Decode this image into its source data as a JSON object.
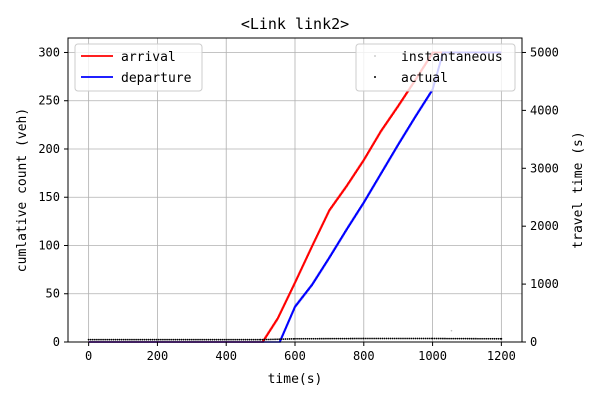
{
  "chart_data": {
    "type": "line",
    "title": "<Link link2>",
    "xlabel": "time(s)",
    "ylabel": "cumlative count (veh)",
    "y2label": "travel time (s)",
    "xlim": [
      -60,
      1260
    ],
    "ylim": [
      0,
      315
    ],
    "y2lim": [
      0,
      5250
    ],
    "x_ticks": [
      "0",
      "200",
      "400",
      "600",
      "800",
      "1000",
      "1200"
    ],
    "y_ticks": [
      "0",
      "50",
      "100",
      "150",
      "200",
      "250",
      "300"
    ],
    "y2_ticks": [
      "0",
      "1000",
      "2000",
      "3000",
      "4000",
      "5000"
    ],
    "grid": true,
    "legend_left": {
      "placement": "top-left"
    },
    "legend_right": {
      "placement": "top-right"
    },
    "series": [
      {
        "name": "arrival",
        "axis": "left",
        "style": "step",
        "color": "#ff0000",
        "points": [
          [
            0,
            0
          ],
          [
            505,
            0
          ],
          [
            550,
            25
          ],
          [
            600,
            62
          ],
          [
            650,
            100
          ],
          [
            700,
            137
          ],
          [
            750,
            162
          ],
          [
            800,
            189
          ],
          [
            850,
            219
          ],
          [
            900,
            245
          ],
          [
            950,
            272
          ],
          [
            1000,
            300
          ],
          [
            1200,
            300
          ]
        ]
      },
      {
        "name": "departure",
        "axis": "left",
        "style": "step",
        "color": "#0000ff",
        "points": [
          [
            0,
            0
          ],
          [
            555,
            0
          ],
          [
            600,
            37
          ],
          [
            650,
            60
          ],
          [
            700,
            88
          ],
          [
            750,
            117
          ],
          [
            800,
            145
          ],
          [
            850,
            175
          ],
          [
            900,
            205
          ],
          [
            950,
            234
          ],
          [
            1000,
            262
          ],
          [
            1030,
            300
          ],
          [
            1200,
            300
          ]
        ]
      },
      {
        "name": "instantaneous",
        "axis": "right",
        "style": "dots",
        "color": "#c0c0c0",
        "points": [
          [
            1055,
            195
          ]
        ]
      },
      {
        "name": "actual",
        "axis": "right",
        "style": "dots",
        "color": "#000000",
        "points": [
          [
            0,
            40
          ],
          [
            500,
            40
          ],
          [
            600,
            55
          ],
          [
            800,
            60
          ],
          [
            1000,
            60
          ],
          [
            1200,
            55
          ]
        ]
      }
    ]
  }
}
